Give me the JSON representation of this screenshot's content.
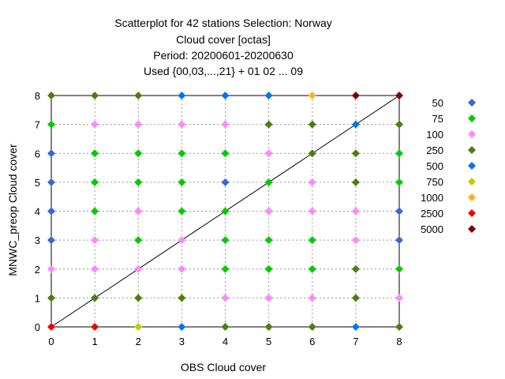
{
  "chart_data": {
    "type": "scatter",
    "title_lines": [
      "Scatterplot for   42 stations Selection: Norway",
      "Cloud cover [octas]",
      "Period: 20200601-20200630",
      "Used {00,03,...,21} + 01 02 ... 09"
    ],
    "xlabel": "OBS Cloud cover",
    "ylabel": "MNWC_preop Cloud cover",
    "xlim": [
      0,
      8
    ],
    "ylim": [
      0,
      8
    ],
    "xticks": [
      "0",
      "1",
      "2",
      "3",
      "4",
      "5",
      "6",
      "7",
      "8"
    ],
    "yticks": [
      "0",
      "1",
      "2",
      "3",
      "4",
      "5",
      "6",
      "7",
      "8"
    ],
    "grid": true,
    "diagonal_line": true,
    "legend_position": "right",
    "legend": [
      {
        "label": "50",
        "color": "#3a66d8"
      },
      {
        "label": "75",
        "color": "#00cc00"
      },
      {
        "label": "100",
        "color": "#ff88ff"
      },
      {
        "label": "250",
        "color": "#4a7f10"
      },
      {
        "label": "500",
        "color": "#0077ee"
      },
      {
        "label": "750",
        "color": "#c8c800"
      },
      {
        "label": "1000",
        "color": "#ffb020"
      },
      {
        "label": "2500",
        "color": "#ee0000"
      },
      {
        "label": "5000",
        "color": "#800000"
      }
    ],
    "points": [
      {
        "x": 0,
        "y": 0,
        "cls": "2500"
      },
      {
        "x": 1,
        "y": 0,
        "cls": "2500"
      },
      {
        "x": 2,
        "y": 0,
        "cls": "750"
      },
      {
        "x": 3,
        "y": 0,
        "cls": "500"
      },
      {
        "x": 4,
        "y": 0,
        "cls": "250"
      },
      {
        "x": 5,
        "y": 0,
        "cls": "250"
      },
      {
        "x": 6,
        "y": 0,
        "cls": "250"
      },
      {
        "x": 7,
        "y": 0,
        "cls": "500"
      },
      {
        "x": 8,
        "y": 0,
        "cls": "250"
      },
      {
        "x": 0,
        "y": 1,
        "cls": "250"
      },
      {
        "x": 1,
        "y": 1,
        "cls": "250"
      },
      {
        "x": 2,
        "y": 1,
        "cls": "250"
      },
      {
        "x": 3,
        "y": 1,
        "cls": "250"
      },
      {
        "x": 4,
        "y": 1,
        "cls": "100"
      },
      {
        "x": 5,
        "y": 1,
        "cls": "100"
      },
      {
        "x": 6,
        "y": 1,
        "cls": "100"
      },
      {
        "x": 7,
        "y": 1,
        "cls": "250"
      },
      {
        "x": 8,
        "y": 1,
        "cls": "100"
      },
      {
        "x": 0,
        "y": 2,
        "cls": "100"
      },
      {
        "x": 1,
        "y": 2,
        "cls": "100"
      },
      {
        "x": 2,
        "y": 2,
        "cls": "100"
      },
      {
        "x": 3,
        "y": 2,
        "cls": "100"
      },
      {
        "x": 4,
        "y": 2,
        "cls": "75"
      },
      {
        "x": 5,
        "y": 2,
        "cls": "75"
      },
      {
        "x": 6,
        "y": 2,
        "cls": "75"
      },
      {
        "x": 7,
        "y": 2,
        "cls": "250"
      },
      {
        "x": 8,
        "y": 2,
        "cls": "75"
      },
      {
        "x": 0,
        "y": 3,
        "cls": "50"
      },
      {
        "x": 1,
        "y": 3,
        "cls": "100"
      },
      {
        "x": 2,
        "y": 3,
        "cls": "75"
      },
      {
        "x": 3,
        "y": 3,
        "cls": "100"
      },
      {
        "x": 4,
        "y": 3,
        "cls": "75"
      },
      {
        "x": 5,
        "y": 3,
        "cls": "75"
      },
      {
        "x": 6,
        "y": 3,
        "cls": "75"
      },
      {
        "x": 7,
        "y": 3,
        "cls": "100"
      },
      {
        "x": 8,
        "y": 3,
        "cls": "50"
      },
      {
        "x": 0,
        "y": 4,
        "cls": "50"
      },
      {
        "x": 1,
        "y": 4,
        "cls": "75"
      },
      {
        "x": 2,
        "y": 4,
        "cls": "100"
      },
      {
        "x": 3,
        "y": 4,
        "cls": "75"
      },
      {
        "x": 4,
        "y": 4,
        "cls": "75"
      },
      {
        "x": 5,
        "y": 4,
        "cls": "100"
      },
      {
        "x": 6,
        "y": 4,
        "cls": "100"
      },
      {
        "x": 7,
        "y": 4,
        "cls": "100"
      },
      {
        "x": 8,
        "y": 4,
        "cls": "50"
      },
      {
        "x": 0,
        "y": 5,
        "cls": "50"
      },
      {
        "x": 1,
        "y": 5,
        "cls": "75"
      },
      {
        "x": 2,
        "y": 5,
        "cls": "75"
      },
      {
        "x": 3,
        "y": 5,
        "cls": "75"
      },
      {
        "x": 4,
        "y": 5,
        "cls": "50"
      },
      {
        "x": 5,
        "y": 5,
        "cls": "75"
      },
      {
        "x": 6,
        "y": 5,
        "cls": "100"
      },
      {
        "x": 7,
        "y": 5,
        "cls": "250"
      },
      {
        "x": 8,
        "y": 5,
        "cls": "75"
      },
      {
        "x": 0,
        "y": 6,
        "cls": "50"
      },
      {
        "x": 1,
        "y": 6,
        "cls": "75"
      },
      {
        "x": 2,
        "y": 6,
        "cls": "75"
      },
      {
        "x": 3,
        "y": 6,
        "cls": "75"
      },
      {
        "x": 4,
        "y": 6,
        "cls": "75"
      },
      {
        "x": 5,
        "y": 6,
        "cls": "100"
      },
      {
        "x": 6,
        "y": 6,
        "cls": "250"
      },
      {
        "x": 7,
        "y": 6,
        "cls": "250"
      },
      {
        "x": 8,
        "y": 6,
        "cls": "75"
      },
      {
        "x": 0,
        "y": 7,
        "cls": "75"
      },
      {
        "x": 1,
        "y": 7,
        "cls": "100"
      },
      {
        "x": 2,
        "y": 7,
        "cls": "100"
      },
      {
        "x": 3,
        "y": 7,
        "cls": "100"
      },
      {
        "x": 4,
        "y": 7,
        "cls": "100"
      },
      {
        "x": 5,
        "y": 7,
        "cls": "250"
      },
      {
        "x": 6,
        "y": 7,
        "cls": "250"
      },
      {
        "x": 7,
        "y": 7,
        "cls": "500"
      },
      {
        "x": 8,
        "y": 7,
        "cls": "250"
      },
      {
        "x": 0,
        "y": 8,
        "cls": "250"
      },
      {
        "x": 1,
        "y": 8,
        "cls": "250"
      },
      {
        "x": 2,
        "y": 8,
        "cls": "250"
      },
      {
        "x": 3,
        "y": 8,
        "cls": "500"
      },
      {
        "x": 4,
        "y": 8,
        "cls": "500"
      },
      {
        "x": 5,
        "y": 8,
        "cls": "500"
      },
      {
        "x": 6,
        "y": 8,
        "cls": "1000"
      },
      {
        "x": 7,
        "y": 8,
        "cls": "5000"
      },
      {
        "x": 8,
        "y": 8,
        "cls": "5000"
      }
    ]
  }
}
